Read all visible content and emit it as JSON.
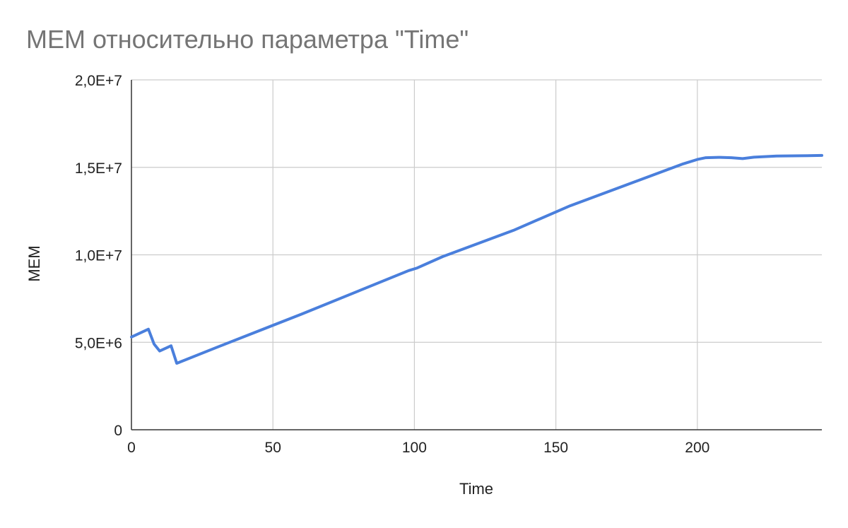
{
  "chart_data": {
    "type": "line",
    "title": "MEM относительно параметра \"Time\"",
    "xlabel": "Time",
    "ylabel": "MEM",
    "xlim": [
      0,
      244
    ],
    "ylim": [
      0,
      20000000
    ],
    "x_ticks": [
      {
        "value": 0,
        "label": "0"
      },
      {
        "value": 50,
        "label": "50"
      },
      {
        "value": 100,
        "label": "100"
      },
      {
        "value": 150,
        "label": "150"
      },
      {
        "value": 200,
        "label": "200"
      }
    ],
    "y_ticks": [
      {
        "value": 0,
        "label": "0"
      },
      {
        "value": 5000000,
        "label": "5,0E+6"
      },
      {
        "value": 10000000,
        "label": "1,0E+7"
      },
      {
        "value": 15000000,
        "label": "1,5E+7"
      },
      {
        "value": 20000000,
        "label": "2,0E+7"
      }
    ],
    "grid": true,
    "colors": {
      "series": "#4a7fdc",
      "grid": "#cccccc",
      "axis": "#333333",
      "title": "#757575",
      "text": "#222222"
    },
    "series": [
      {
        "x": [
          0,
          6,
          8,
          10,
          14,
          16,
          30,
          60,
          98,
          101,
          110,
          135,
          155,
          175,
          195,
          200,
          203,
          208,
          212,
          216,
          220,
          228,
          236,
          244
        ],
        "y": [
          5300000,
          5750000,
          4900000,
          4500000,
          4800000,
          3800000,
          4700000,
          6600000,
          9100000,
          9250000,
          9900000,
          11400000,
          12800000,
          14000000,
          15200000,
          15450000,
          15550000,
          15570000,
          15550000,
          15500000,
          15580000,
          15650000,
          15660000,
          15680000
        ]
      }
    ]
  }
}
